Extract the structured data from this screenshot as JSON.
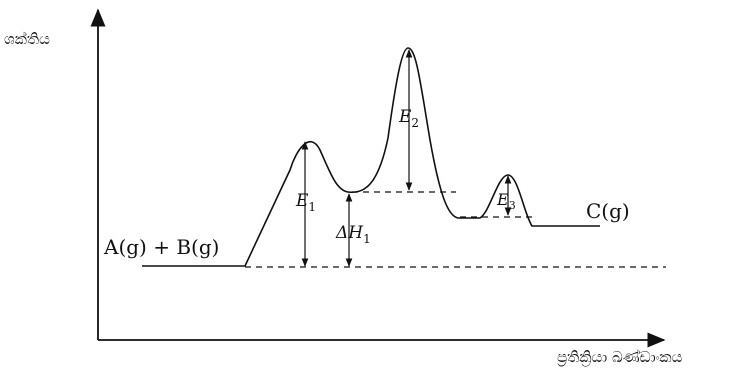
{
  "axes": {
    "y_label": "ශක්තිය",
    "x_label": "ප්‍රතික්‍රියා ඛණ්ඩාංකය"
  },
  "species": {
    "reactants": "A(g) + B(g)",
    "product": "C(g)"
  },
  "energy_labels": {
    "e1": {
      "symbol": "E",
      "sub": "1"
    },
    "e2": {
      "symbol": "E",
      "sub": "2"
    },
    "e3": {
      "symbol": "E",
      "sub": "3"
    },
    "dh1": {
      "symbol": "ΔH",
      "sub": "1"
    }
  }
}
